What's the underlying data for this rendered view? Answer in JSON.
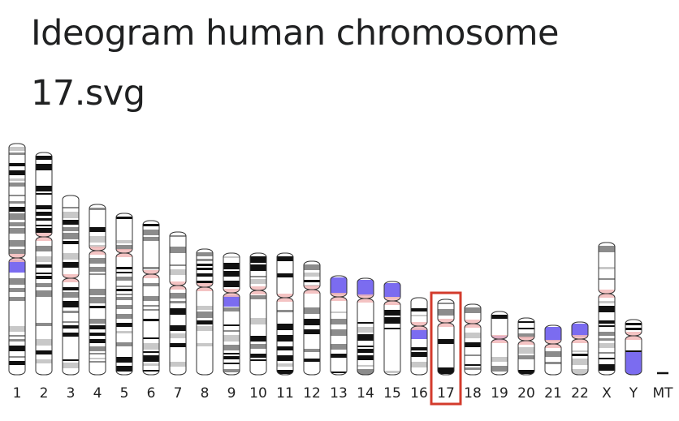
{
  "title": "Ideogram human chromosome 17.svg",
  "chromosomes": [
    {
      "label": "1",
      "highlighted": false
    },
    {
      "label": "2",
      "highlighted": false
    },
    {
      "label": "3",
      "highlighted": false
    },
    {
      "label": "4",
      "highlighted": false
    },
    {
      "label": "5",
      "highlighted": false
    },
    {
      "label": "6",
      "highlighted": false
    },
    {
      "label": "7",
      "highlighted": false
    },
    {
      "label": "8",
      "highlighted": false
    },
    {
      "label": "9",
      "highlighted": false
    },
    {
      "label": "10",
      "highlighted": false
    },
    {
      "label": "11",
      "highlighted": false
    },
    {
      "label": "12",
      "highlighted": false
    },
    {
      "label": "13",
      "highlighted": false
    },
    {
      "label": "14",
      "highlighted": false
    },
    {
      "label": "15",
      "highlighted": false
    },
    {
      "label": "16",
      "highlighted": false
    },
    {
      "label": "17",
      "highlighted": true
    },
    {
      "label": "18",
      "highlighted": false
    },
    {
      "label": "19",
      "highlighted": false
    },
    {
      "label": "20",
      "highlighted": false
    },
    {
      "label": "21",
      "highlighted": false
    },
    {
      "label": "22",
      "highlighted": false
    },
    {
      "label": "X",
      "highlighted": false
    },
    {
      "label": "Y",
      "highlighted": false
    },
    {
      "label": "MT",
      "highlighted": false
    }
  ],
  "colors": {
    "highlight_box": "#d33b2c",
    "heterochromatin": "#7b6cf0",
    "centromere": "#f2b8b8",
    "band_dark": "#111111",
    "band_gray": "#8c8c8c",
    "outline": "#333333"
  }
}
